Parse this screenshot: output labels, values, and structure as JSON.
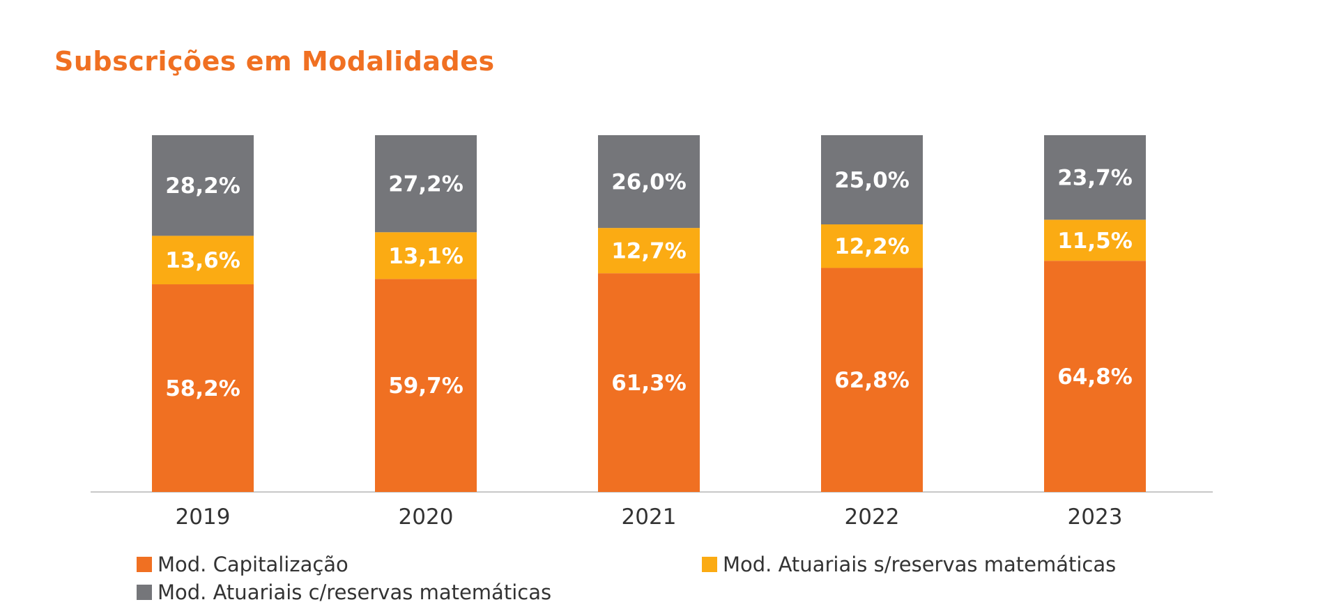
{
  "title": "Subscrições em Modalidades",
  "chart_data": {
    "type": "bar",
    "stacked": true,
    "categories": [
      "2019",
      "2020",
      "2021",
      "2022",
      "2023"
    ],
    "series": [
      {
        "name": "Mod. Capitalização",
        "color": "#f07022",
        "values": [
          58.2,
          59.7,
          61.3,
          62.8,
          64.8
        ],
        "labels": [
          "58,2%",
          "59,7%",
          "61,3%",
          "62,8%",
          "64,8%"
        ]
      },
      {
        "name": "Mod. Atuariais s/reservas matemáticas",
        "color": "#fbab13",
        "values": [
          13.6,
          13.1,
          12.7,
          12.2,
          11.5
        ],
        "labels": [
          "13,6%",
          "13,1%",
          "12,7%",
          "12,2%",
          "11,5%"
        ]
      },
      {
        "name": "Mod. Atuariais c/reservas matemáticas",
        "color": "#75767a",
        "values": [
          28.2,
          27.2,
          26.0,
          25.0,
          23.7
        ],
        "labels": [
          "28,2%",
          "27,2%",
          "26,0%",
          "25,0%",
          "23,7%"
        ]
      }
    ],
    "ylim": [
      0,
      100
    ],
    "grid": false,
    "legend_position": "bottom"
  }
}
